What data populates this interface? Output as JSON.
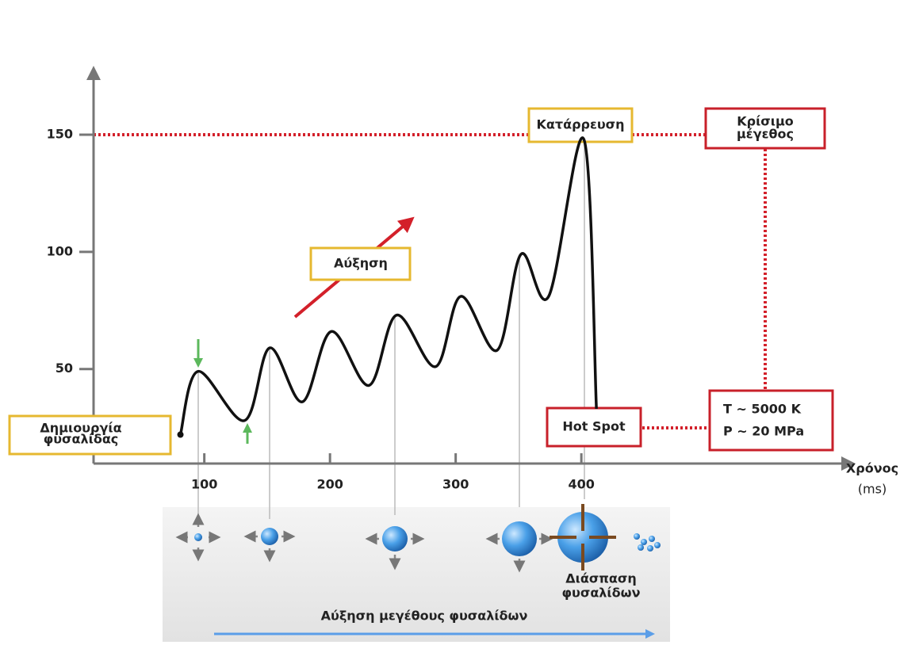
{
  "chart_data": {
    "type": "line",
    "x_label": [
      "Χρόνος",
      "(ms)"
    ],
    "x": [
      81,
      95,
      132,
      152,
      178,
      201,
      231,
      253,
      284,
      304,
      333,
      352,
      374,
      402,
      412
    ],
    "series": [
      {
        "color": "#111111",
        "values": [
          22,
          49,
          28,
          59,
          36,
          66,
          43,
          73,
          51,
          81,
          58,
          99,
          81,
          148,
          33
        ]
      }
    ],
    "xlim": [
      10,
      610
    ],
    "ylim": [
      10,
      175
    ],
    "xticks": [
      100,
      200,
      300,
      400
    ],
    "yticks": [
      50,
      100,
      150
    ],
    "annotations": {
      "collapse": [
        "Κατάρρευση"
      ],
      "critical": [
        "Κρίσιμο",
        "μέγεθος"
      ],
      "growth": [
        "Αύξηση"
      ],
      "creation": [
        "Δημιουργία",
        "φυσαλίδας"
      ],
      "hotspot": [
        "Hot Spot"
      ],
      "conditions": [
        "T ~ 5000 K",
        "P ~ 20 MPa"
      ],
      "breakup": [
        "Διάσπαση",
        "φυσαλίδων"
      ],
      "size_growth": [
        "Αύξηση μεγέθους φυσαλίδων"
      ]
    }
  }
}
